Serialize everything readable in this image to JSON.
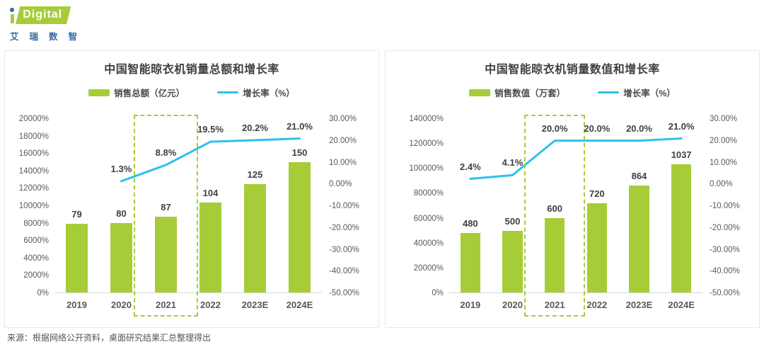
{
  "logo": {
    "brand": "Digital",
    "subtitle": "艾瑞数智",
    "colors": {
      "green": "#a6cd38",
      "blue": "#34699f"
    }
  },
  "footer": {
    "source": "来源：根据网络公开资料，桌面研究结果汇总整理得出"
  },
  "colors": {
    "bar": "#a6cd38",
    "line": "#2cc1ef",
    "highlight_border": "#a6cd38",
    "title_text": "#3f3f3f",
    "axis_text": "#595959",
    "label_text": "#404040"
  },
  "chart_data": [
    {
      "type": "bar",
      "subtype": "bar+line combo",
      "title": "中国智能晾衣机销量总额和增长率",
      "legend": [
        {
          "label": "销售总额（亿元）",
          "series_type": "bar"
        },
        {
          "label": "增长率（%）",
          "series_type": "line"
        }
      ],
      "categories": [
        "2019",
        "2020",
        "2021",
        "2022",
        "2023E",
        "2024E"
      ],
      "bar_series": {
        "name": "销售总额（亿元）",
        "values": [
          79,
          80,
          87,
          104,
          125,
          150
        ],
        "labels": [
          "79",
          "80",
          "87",
          "104",
          "125",
          "150"
        ]
      },
      "line_series": {
        "name": "增长率（%）",
        "values": [
          null,
          1.3,
          8.8,
          19.5,
          20.2,
          21.0
        ],
        "labels": [
          "",
          "1.3%",
          "8.8%",
          "19.5%",
          "20.2%",
          "21.0%"
        ]
      },
      "left_axis": {
        "ticks": [
          "20000%",
          "18000%",
          "16000%",
          "14000%",
          "12000%",
          "10000%",
          "8000%",
          "6000%",
          "4000%",
          "2000%",
          "0%"
        ],
        "max": 20000,
        "min": 0,
        "bar_value_multiplier": 100
      },
      "right_axis": {
        "ticks": [
          "30.00%",
          "20.00%",
          "10.00%",
          "0.00%",
          "-10.00%",
          "-20.00%",
          "-30.00%",
          "-40.00%",
          "-50.00%"
        ],
        "max": 30,
        "min": -50
      },
      "highlight": {
        "category": "2021",
        "index": 2
      },
      "grid": "off",
      "legend_position": "top"
    },
    {
      "type": "bar",
      "subtype": "bar+line combo",
      "title": "中国智能晾衣机销量数值和增长率",
      "legend": [
        {
          "label": "销售数值（万套）",
          "series_type": "bar"
        },
        {
          "label": "增长率（%）",
          "series_type": "line"
        }
      ],
      "categories": [
        "2019",
        "2020",
        "2021",
        "2022",
        "2023E",
        "2024E"
      ],
      "bar_series": {
        "name": "销售数值（万套）",
        "values": [
          480,
          500,
          600,
          720,
          864,
          1037
        ],
        "labels": [
          "480",
          "500",
          "600",
          "720",
          "864",
          "1037"
        ]
      },
      "line_series": {
        "name": "增长率（%）",
        "values": [
          2.4,
          4.1,
          20.0,
          20.0,
          20.0,
          21.0
        ],
        "labels": [
          "2.4%",
          "4.1%",
          "20.0%",
          "20.0%",
          "20.0%",
          "21.0%"
        ]
      },
      "left_axis": {
        "ticks": [
          "140000%",
          "120000%",
          "100000%",
          "80000%",
          "60000%",
          "40000%",
          "20000%",
          "0%"
        ],
        "max": 140000,
        "min": 0,
        "bar_value_multiplier": 100
      },
      "right_axis": {
        "ticks": [
          "30.00%",
          "20.00%",
          "10.00%",
          "0.00%",
          "-10.00%",
          "-20.00%",
          "-30.00%",
          "-40.00%",
          "-50.00%"
        ],
        "max": 30,
        "min": -50
      },
      "highlight": {
        "category": "2021",
        "index": 2
      },
      "grid": "off",
      "legend_position": "top"
    }
  ]
}
